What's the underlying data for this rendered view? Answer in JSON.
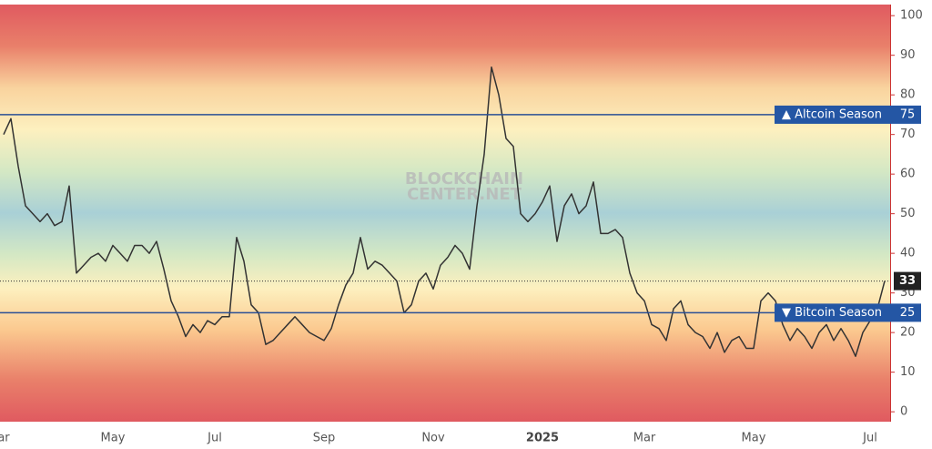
{
  "chart_data": {
    "type": "line",
    "categories": [
      "ar",
      null,
      null,
      null,
      null,
      null,
      null,
      null,
      null,
      null,
      null,
      null,
      null,
      null,
      null,
      "May",
      null,
      null,
      null,
      null,
      null,
      null,
      null,
      null,
      null,
      null,
      null,
      null,
      null,
      "Jul",
      null,
      null,
      null,
      null,
      null,
      null,
      null,
      null,
      null,
      null,
      null,
      null,
      null,
      null,
      "Sep",
      null,
      null,
      null,
      null,
      null,
      null,
      null,
      null,
      null,
      null,
      null,
      null,
      null,
      null,
      "Nov",
      null,
      null,
      null,
      null,
      null,
      null,
      null,
      null,
      null,
      null,
      null,
      null,
      null,
      null,
      "2025",
      null,
      null,
      null,
      null,
      null,
      null,
      null,
      null,
      null,
      null,
      null,
      null,
      null,
      "Mar",
      null,
      null,
      null,
      null,
      null,
      null,
      null,
      null,
      null,
      null,
      null,
      null,
      null,
      null,
      "May",
      null,
      null,
      null,
      null,
      null,
      null,
      null,
      null,
      null,
      null,
      null,
      null,
      null,
      null,
      null,
      "Jul",
      null,
      null
    ],
    "values": [
      70,
      74,
      62,
      52,
      50,
      48,
      50,
      47,
      48,
      57,
      35,
      37,
      39,
      40,
      38,
      42,
      40,
      38,
      42,
      42,
      40,
      43,
      36,
      28,
      24,
      19,
      22,
      20,
      23,
      22,
      24,
      24,
      44,
      38,
      27,
      25,
      17,
      18,
      20,
      22,
      24,
      22,
      20,
      19,
      18,
      21,
      27,
      32,
      35,
      44,
      36,
      38,
      37,
      35,
      33,
      25,
      27,
      33,
      35,
      31,
      37,
      39,
      42,
      40,
      36,
      52,
      65,
      87,
      80,
      69,
      67,
      50,
      48,
      50,
      53,
      57,
      43,
      52,
      55,
      50,
      52,
      58,
      45,
      45,
      46,
      44,
      35,
      30,
      28,
      22,
      21,
      18,
      26,
      28,
      22,
      20,
      19,
      16,
      20,
      15,
      18,
      19,
      16,
      16,
      28,
      30,
      28,
      22,
      18,
      21,
      19,
      16,
      20,
      22,
      18,
      21,
      18,
      14,
      20,
      23,
      26,
      33
    ],
    "color": "#333333",
    "ylim": [
      -2.5,
      102.8
    ],
    "yticks": [
      0,
      10,
      20,
      30,
      40,
      50,
      60,
      70,
      80,
      90,
      100
    ],
    "reference_lines": [
      {
        "label": "▲ Altcoin Season",
        "value": 75
      },
      {
        "label": "▼ Bitcoin Season",
        "value": 25
      }
    ],
    "watermark": [
      "BLOCKCHAIN",
      "CENTER.NET"
    ]
  }
}
